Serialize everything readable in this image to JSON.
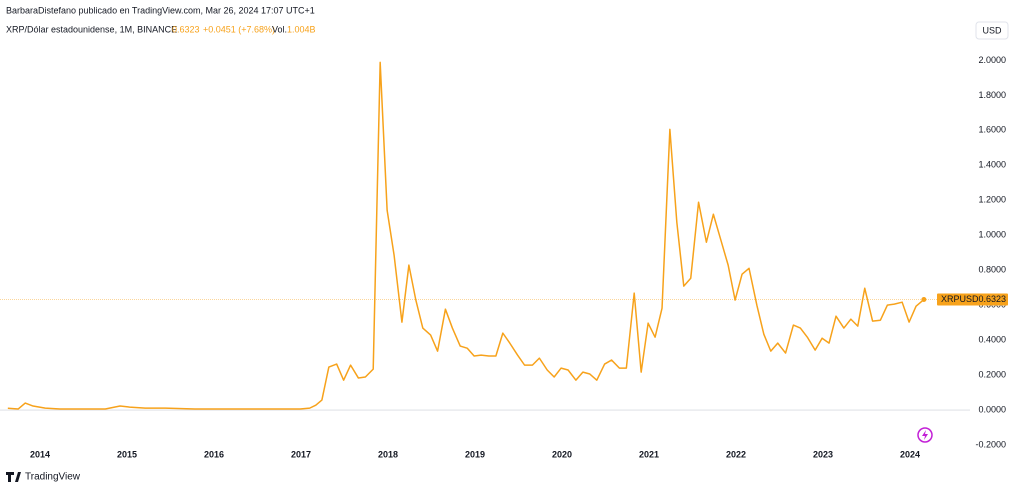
{
  "header": "BarbaraDistefano publicado en TradingView.com, Mar 26, 2024 17:07 UTC+1",
  "legend": {
    "symbol": "XRP/Dólar estadounidense, 1M, BINANCE",
    "change": "+0.0451 (+7.68%)",
    "volume_label": "Vol.",
    "volume": "1.004B"
  },
  "currency": "USD",
  "footer": "TradingView",
  "chart_data": {
    "type": "line",
    "x": [
      2013.63,
      2013.75,
      2013.83,
      2013.92,
      2014.06,
      2014.23,
      2014.46,
      2014.75,
      2014.92,
      2015.03,
      2015.21,
      2015.44,
      2015.78,
      2016.18,
      2016.53,
      2016.76,
      2016.99,
      2017.1,
      2017.17,
      2017.24,
      2017.32,
      2017.41,
      2017.49,
      2017.57,
      2017.66,
      2017.74,
      2017.83,
      2017.91,
      2017.99,
      2018.07,
      2018.16,
      2018.24,
      2018.32,
      2018.4,
      2018.49,
      2018.57,
      2018.66,
      2018.74,
      2018.83,
      2018.91,
      2018.99,
      2019.07,
      2019.16,
      2019.24,
      2019.32,
      2019.4,
      2019.49,
      2019.57,
      2019.66,
      2019.74,
      2019.83,
      2019.91,
      2019.99,
      2020.07,
      2020.16,
      2020.24,
      2020.32,
      2020.4,
      2020.49,
      2020.57,
      2020.66,
      2020.74,
      2020.83,
      2020.91,
      2020.99,
      2021.07,
      2021.15,
      2021.24,
      2021.32,
      2021.4,
      2021.48,
      2021.57,
      2021.66,
      2021.74,
      2021.82,
      2021.91,
      2021.99,
      2022.07,
      2022.15,
      2022.24,
      2022.32,
      2022.4,
      2022.48,
      2022.57,
      2022.66,
      2022.74,
      2022.82,
      2022.91,
      2022.99,
      2023.07,
      2023.15,
      2023.24,
      2023.32,
      2023.4,
      2023.48,
      2023.57,
      2023.66,
      2023.74,
      2023.82,
      2023.91,
      2023.99,
      2024.07,
      2024.16
    ],
    "series": [
      {
        "name": "XRPUSD",
        "color": "#f7a21b",
        "values": [
          0.01,
          0.006,
          0.04,
          0.023,
          0.011,
          0.006,
          0.006,
          0.006,
          0.023,
          0.017,
          0.011,
          0.011,
          0.006,
          0.006,
          0.006,
          0.006,
          0.006,
          0.011,
          0.028,
          0.057,
          0.246,
          0.263,
          0.171,
          0.257,
          0.183,
          0.189,
          0.234,
          1.989,
          1.143,
          0.886,
          0.503,
          0.829,
          0.629,
          0.469,
          0.429,
          0.337,
          0.577,
          0.469,
          0.366,
          0.354,
          0.309,
          0.314,
          0.309,
          0.309,
          0.44,
          0.383,
          0.314,
          0.257,
          0.257,
          0.297,
          0.229,
          0.189,
          0.24,
          0.229,
          0.171,
          0.217,
          0.206,
          0.171,
          0.263,
          0.286,
          0.24,
          0.24,
          0.669,
          0.217,
          0.497,
          0.417,
          0.583,
          1.606,
          1.074,
          0.709,
          0.754,
          1.189,
          0.96,
          1.12,
          0.983,
          0.829,
          0.629,
          0.777,
          0.811,
          0.6,
          0.434,
          0.337,
          0.383,
          0.326,
          0.486,
          0.469,
          0.417,
          0.343,
          0.411,
          0.383,
          0.537,
          0.469,
          0.52,
          0.48,
          0.697,
          0.509,
          0.514,
          0.6,
          0.606,
          0.617,
          0.503,
          0.594,
          0.6323
        ]
      }
    ],
    "xlim": [
      2013.54,
      2024.69
    ],
    "xticks": [
      2014,
      2015,
      2016,
      2017,
      2018,
      2019,
      2020,
      2021,
      2022,
      2023,
      2024
    ],
    "ylim": [
      -0.2,
      2.22
    ],
    "yticks": [
      {
        "value": -0.2,
        "label": "-0.2000"
      },
      {
        "value": 0,
        "label": "0.0000"
      },
      {
        "value": 0.2,
        "label": "0.2000"
      },
      {
        "value": 0.4,
        "label": "0.4000"
      },
      {
        "value": 0.6,
        "label": "0.6000"
      },
      {
        "value": 0.8,
        "label": "0.8000"
      },
      {
        "value": 1.0,
        "label": "1.0000"
      },
      {
        "value": 1.2,
        "label": "1.2000"
      },
      {
        "value": 1.4,
        "label": "1.4000"
      },
      {
        "value": 1.6,
        "label": "1.6000"
      },
      {
        "value": 1.8,
        "label": "1.8000"
      },
      {
        "value": 2.0,
        "label": "2.0000"
      }
    ],
    "grid": false
  }
}
